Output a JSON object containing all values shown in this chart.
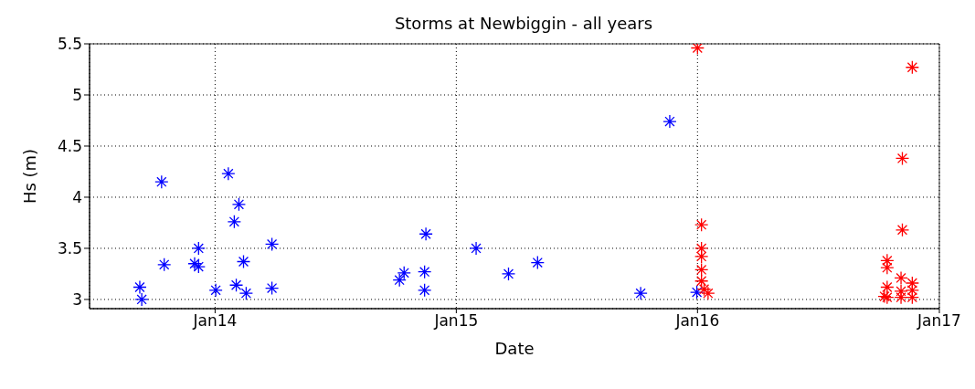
{
  "chart_data": {
    "type": "scatter",
    "title": "Storms at Newbiggin - all years",
    "xlabel": "Date",
    "ylabel": "Hs (m)",
    "xlim": [
      "2013-06-25",
      "2017-01-01"
    ],
    "xticks": [
      {
        "value": "2014-01-01",
        "label": "Jan14"
      },
      {
        "value": "2015-01-01",
        "label": "Jan15"
      },
      {
        "value": "2016-01-01",
        "label": "Jan16"
      },
      {
        "value": "2017-01-01",
        "label": "Jan17"
      }
    ],
    "ylim": [
      2.91,
      5.5
    ],
    "yticks": [
      3,
      3.5,
      4,
      4.5,
      5,
      5.5
    ],
    "grid": true,
    "marker": "cross",
    "series": [
      {
        "color": "#0000ff",
        "x": [
          "2013-09-09",
          "2013-09-12",
          "2013-10-12",
          "2013-10-16",
          "2013-12-01",
          "2013-12-07",
          "2013-12-07",
          "2014-01-02",
          "2014-01-21",
          "2014-01-30",
          "2014-02-06",
          "2014-02-02",
          "2014-02-13",
          "2014-02-17",
          "2014-03-28",
          "2014-03-28",
          "2014-10-07",
          "2014-10-14",
          "2014-11-14",
          "2014-11-14",
          "2014-11-16",
          "2015-01-31",
          "2015-03-21",
          "2015-05-04",
          "2015-10-07",
          "2015-11-20",
          "2015-12-31"
        ],
        "values": [
          3.12,
          3.0,
          4.15,
          3.34,
          3.35,
          3.32,
          3.5,
          3.09,
          4.23,
          3.76,
          3.93,
          3.14,
          3.37,
          3.06,
          3.54,
          3.11,
          3.19,
          3.26,
          3.27,
          3.09,
          3.64,
          3.5,
          3.25,
          3.36,
          3.06,
          4.74,
          3.07
        ]
      },
      {
        "color": "#ff0000",
        "x": [
          "2016-01-01",
          "2016-01-07",
          "2016-01-07",
          "2016-01-07",
          "2016-01-07",
          "2016-01-07",
          "2016-01-11",
          "2016-01-17",
          "2016-10-14",
          "2016-10-14",
          "2016-10-14",
          "2016-10-14",
          "2016-10-10",
          "2016-11-04",
          "2016-11-04",
          "2016-11-04",
          "2016-11-06",
          "2016-11-06",
          "2016-11-21",
          "2016-11-21",
          "2016-11-21",
          "2016-11-21"
        ],
        "values": [
          5.46,
          3.73,
          3.5,
          3.42,
          3.29,
          3.18,
          3.1,
          3.06,
          3.38,
          3.31,
          3.12,
          3.02,
          3.03,
          3.21,
          3.08,
          3.02,
          4.38,
          3.68,
          5.27,
          3.16,
          3.09,
          3.02
        ]
      }
    ]
  }
}
